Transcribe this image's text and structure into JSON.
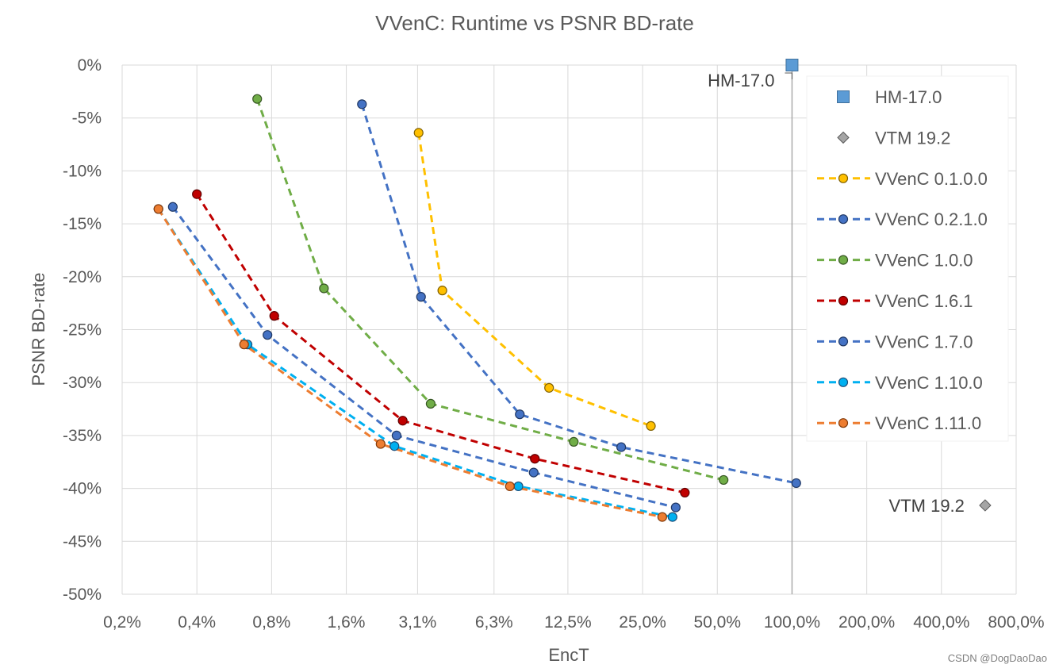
{
  "chart_data": {
    "type": "scatter",
    "title": "VVenC: Runtime vs PSNR BD-rate",
    "xlabel": "EncT",
    "ylabel": "PSNR BD-rate",
    "xscale": "log2",
    "xlim": [
      0.2,
      800
    ],
    "ylim": [
      -50,
      0
    ],
    "x_tick_values": [
      0.2,
      0.4,
      0.8,
      1.6,
      3.1,
      6.3,
      12.5,
      25,
      50,
      100,
      200,
      400,
      800
    ],
    "x_tick_labels": [
      "0,2%",
      "0,4%",
      "0,8%",
      "1,6%",
      "3,1%",
      "6,3%",
      "12,5%",
      "25,0%",
      "50,0%",
      "100,0%",
      "200,0%",
      "400,0%",
      "800,0%"
    ],
    "y_tick_values": [
      0,
      -5,
      -10,
      -15,
      -20,
      -25,
      -30,
      -35,
      -40,
      -45,
      -50
    ],
    "y_tick_labels": [
      "0%",
      "-5%",
      "-10%",
      "-15%",
      "-20%",
      "-25%",
      "-30%",
      "-35%",
      "-40%",
      "-45%",
      "-50%"
    ],
    "grid": true,
    "legend_position": "right",
    "series": [
      {
        "name": "HM-17.0",
        "marker": "square",
        "line": false,
        "color": "#5b9bd5",
        "edge": "#41719c",
        "points": [
          [
            100,
            0
          ]
        ]
      },
      {
        "name": "VTM 19.2",
        "marker": "diamond",
        "line": false,
        "color": "#a5a5a5",
        "edge": "#595959",
        "points": [
          [
            600,
            -41.6
          ]
        ]
      },
      {
        "name": "VVenC 0.1.0.0",
        "marker": "circle",
        "line": true,
        "color": "#ffc000",
        "edge": "#806000",
        "points": [
          [
            3.13,
            -6.4
          ],
          [
            3.9,
            -21.3
          ],
          [
            10.5,
            -30.5
          ],
          [
            27,
            -34.1
          ]
        ]
      },
      {
        "name": "VVenC 0.2.1.0",
        "marker": "circle",
        "line": true,
        "color": "#4472c4",
        "edge": "#203864",
        "points": [
          [
            1.85,
            -3.7
          ],
          [
            3.2,
            -21.9
          ],
          [
            8.0,
            -33.0
          ],
          [
            20.5,
            -36.1
          ],
          [
            104,
            -39.5
          ]
        ]
      },
      {
        "name": "VVenC 1.0.0",
        "marker": "circle",
        "line": true,
        "color": "#70ad47",
        "edge": "#375623",
        "points": [
          [
            0.7,
            -3.2
          ],
          [
            1.3,
            -21.1
          ],
          [
            3.5,
            -32.0
          ],
          [
            13.2,
            -35.6
          ],
          [
            53,
            -39.2
          ]
        ]
      },
      {
        "name": "VVenC 1.6.1",
        "marker": "circle",
        "line": true,
        "color": "#c00000",
        "edge": "#600000",
        "points": [
          [
            0.4,
            -12.2
          ],
          [
            0.82,
            -23.7
          ],
          [
            2.7,
            -33.6
          ],
          [
            9.2,
            -37.2
          ],
          [
            37,
            -40.4
          ]
        ]
      },
      {
        "name": "VVenC 1.7.0",
        "marker": "circle",
        "line": true,
        "color": "#4472c4",
        "edge": "#203864",
        "points": [
          [
            0.32,
            -13.4
          ],
          [
            0.77,
            -25.5
          ],
          [
            2.55,
            -35.0
          ],
          [
            9.1,
            -38.5
          ],
          [
            34,
            -41.8
          ]
        ]
      },
      {
        "name": "VVenC 1.10.0",
        "marker": "circle",
        "line": true,
        "color": "#00b0f0",
        "edge": "#1f4e79",
        "points": [
          [
            0.28,
            -13.6
          ],
          [
            0.64,
            -26.4
          ],
          [
            2.5,
            -36.0
          ],
          [
            7.9,
            -39.8
          ],
          [
            33,
            -42.7
          ]
        ]
      },
      {
        "name": "VVenC 1.11.0",
        "marker": "circle",
        "line": true,
        "color": "#ed7d31",
        "edge": "#843c0c",
        "points": [
          [
            0.28,
            -13.6
          ],
          [
            0.62,
            -26.4
          ],
          [
            2.2,
            -35.8
          ],
          [
            7.3,
            -39.8
          ],
          [
            30,
            -42.7
          ]
        ]
      }
    ],
    "annotations": [
      {
        "text": "HM-17.0",
        "x": 100,
        "y": 0,
        "series": "HM-17.0"
      },
      {
        "text": "VTM 19.2",
        "x": 600,
        "y": -41.6,
        "series": "VTM 19.2"
      }
    ]
  },
  "watermark": "CSDN @DogDaoDao"
}
